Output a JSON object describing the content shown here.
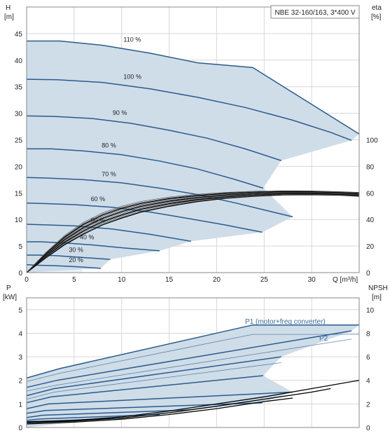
{
  "colors": {
    "background": "#ffffff",
    "grid": "#d7d7d7",
    "frame": "#888888",
    "envelope_fill": "#cfdde9",
    "low_fill": "#eaf3fb",
    "curve": "#2a5b8c",
    "eff_curve": "#000000",
    "thin_curve": "#555555",
    "text": "#222222",
    "label_blue": "#3a6b9e"
  },
  "chart_data": [
    {
      "type": "line",
      "title": "NBE 32-160/163, 3*400 V",
      "xlabel": "Q [m³/h]",
      "ylabel_unit": "H",
      "ylabel_bracket": "[m]",
      "y2label_unit": "eta",
      "y2label_bracket": "[%]",
      "xlim": [
        0,
        35
      ],
      "ylim": [
        0,
        50
      ],
      "y2lim": [
        0,
        200
      ],
      "grid": true,
      "x_ticks": [
        "0",
        "5",
        "10",
        "15",
        "20",
        "25",
        "30"
      ],
      "y_ticks": [
        "0",
        "5",
        "10",
        "15",
        "20",
        "25",
        "30",
        "35",
        "40",
        "45"
      ],
      "y2_ticks": [
        "0",
        "20",
        "40",
        "60",
        "80",
        "100"
      ],
      "head_curves": [
        {
          "label": "110 %",
          "x": [
            0,
            3.5,
            8,
            13,
            18,
            23.8,
            35
          ],
          "y": [
            43.6,
            43.6,
            42.8,
            41.3,
            39.5,
            38.6,
            26.1
          ]
        },
        {
          "label": "100 %",
          "x": [
            0,
            3.2,
            8,
            13,
            18,
            23,
            28,
            32,
            34.2
          ],
          "y": [
            36.4,
            36.3,
            35.8,
            34.6,
            33.0,
            31.1,
            28.7,
            26.4,
            24.9
          ]
        },
        {
          "label": "90 %",
          "x": [
            0,
            2.9,
            7,
            11,
            15,
            19,
            23,
            26.8
          ],
          "y": [
            29.5,
            29.4,
            29.0,
            28.1,
            26.8,
            25.3,
            23.3,
            21.1
          ]
        },
        {
          "label": "80 %",
          "x": [
            0,
            2.6,
            6,
            10,
            14,
            18,
            22,
            24.9
          ],
          "y": [
            23.3,
            23.3,
            22.9,
            22.2,
            21.0,
            19.5,
            17.5,
            15.9
          ]
        },
        {
          "label": "70 %",
          "x": [
            0,
            2.3,
            6,
            10,
            14,
            18,
            22,
            28
          ],
          "y": [
            17.9,
            17.8,
            17.5,
            16.9,
            15.9,
            14.7,
            13.1,
            10.5
          ]
        },
        {
          "label": "60 %",
          "x": [
            0,
            2.0,
            5,
            9,
            13,
            17,
            20.8,
            24.8
          ],
          "y": [
            13.1,
            13.0,
            12.8,
            12.3,
            11.4,
            10.2,
            9.0,
            7.6
          ]
        },
        {
          "label": "50 %",
          "x": [
            0,
            1.7,
            5,
            9,
            13,
            17.3
          ],
          "y": [
            9.1,
            9.0,
            8.8,
            8.2,
            7.2,
            5.9
          ]
        },
        {
          "label": "40 %",
          "x": [
            0,
            1.4,
            4,
            7,
            10.5,
            14
          ],
          "y": [
            5.8,
            5.8,
            5.6,
            5.2,
            4.6,
            4.1
          ]
        },
        {
          "label": "30 %",
          "x": [
            0,
            1.2,
            3,
            5.5,
            8.8
          ],
          "y": [
            3.3,
            3.3,
            3.2,
            2.9,
            2.5
          ]
        },
        {
          "label": "20 %",
          "x": [
            0,
            0.9,
            3,
            5.5,
            7.8
          ],
          "y": [
            1.5,
            1.4,
            1.3,
            1.1,
            0.8
          ]
        }
      ],
      "efficiency_band": {
        "x": [
          0,
          2,
          4,
          6,
          8,
          10,
          12,
          15,
          18,
          21,
          24,
          27,
          30,
          33,
          35
        ],
        "y_low": [
          0,
          11,
          21,
          29,
          36,
          41,
          45.5,
          50,
          53.5,
          56,
          57.5,
          58.5,
          58.7,
          58.3,
          57.5
        ],
        "y_high": [
          0,
          15,
          28,
          38,
          45,
          50,
          53.5,
          57,
          59,
          60.5,
          61.3,
          61.7,
          61.6,
          61,
          60.5
        ]
      }
    },
    {
      "type": "line",
      "xlim": [
        0,
        35
      ],
      "ylim": [
        0,
        5.5
      ],
      "y2lim": [
        0,
        11
      ],
      "ylabel_unit": "P",
      "ylabel_bracket": "[kW]",
      "y2label_unit": "NPSH",
      "y2label_bracket": "[m]",
      "grid": true,
      "y_ticks": [
        "0",
        "1",
        "2",
        "3",
        "4",
        "5"
      ],
      "y2_ticks": [
        "0",
        "2",
        "4",
        "6",
        "8",
        "10"
      ],
      "annotations": [
        "P1 (motor+freq converter)",
        "P2"
      ],
      "p1_curves": [
        {
          "x": [
            0,
            3.5,
            23.8,
            35
          ],
          "y": [
            2.1,
            2.5,
            4.35,
            4.35
          ]
        },
        {
          "x": [
            0,
            3.2,
            34.2
          ],
          "y": [
            1.7,
            2.0,
            4.1
          ]
        },
        {
          "x": [
            0,
            2.9,
            26.8
          ],
          "y": [
            1.35,
            1.65,
            3.0
          ]
        },
        {
          "x": [
            0,
            2.6,
            24.9
          ],
          "y": [
            1.05,
            1.3,
            2.2
          ]
        },
        {
          "x": [
            0,
            2.3,
            28
          ],
          "y": [
            0.8,
            1.0,
            1.5
          ]
        },
        {
          "x": [
            0,
            2.0,
            24.8
          ],
          "y": [
            0.6,
            0.72,
            1.05
          ]
        },
        {
          "x": [
            0,
            1.7,
            17.3
          ],
          "y": [
            0.42,
            0.52,
            0.75
          ]
        },
        {
          "x": [
            0,
            1.4,
            14
          ],
          "y": [
            0.3,
            0.36,
            0.55
          ]
        },
        {
          "x": [
            0,
            1.2,
            8.8
          ],
          "y": [
            0.2,
            0.25,
            0.38
          ]
        }
      ],
      "p2_curves": [
        {
          "x": [
            0,
            3.5,
            23.8,
            35
          ],
          "y": [
            1.95,
            2.3,
            3.95,
            3.95
          ]
        },
        {
          "x": [
            0,
            3.2,
            34.2
          ],
          "y": [
            1.55,
            1.8,
            3.75
          ]
        },
        {
          "x": [
            0,
            2.9,
            26.8
          ],
          "y": [
            1.2,
            1.5,
            2.75
          ]
        }
      ],
      "npsh_curves": [
        {
          "x": [
            0,
            5,
            10,
            15,
            20,
            25,
            30,
            35
          ],
          "y": [
            0.5,
            0.6,
            0.9,
            1.4,
            2.0,
            2.6,
            3.3,
            4.0
          ]
        },
        {
          "x": [
            0,
            5,
            10,
            15,
            20,
            25,
            30,
            32
          ],
          "y": [
            0.4,
            0.55,
            0.8,
            1.25,
            1.8,
            2.4,
            3.0,
            3.3
          ]
        },
        {
          "x": [
            0,
            5,
            10,
            15,
            20,
            25,
            28
          ],
          "y": [
            0.3,
            0.45,
            0.7,
            1.1,
            1.6,
            2.2,
            2.5
          ]
        }
      ]
    }
  ]
}
